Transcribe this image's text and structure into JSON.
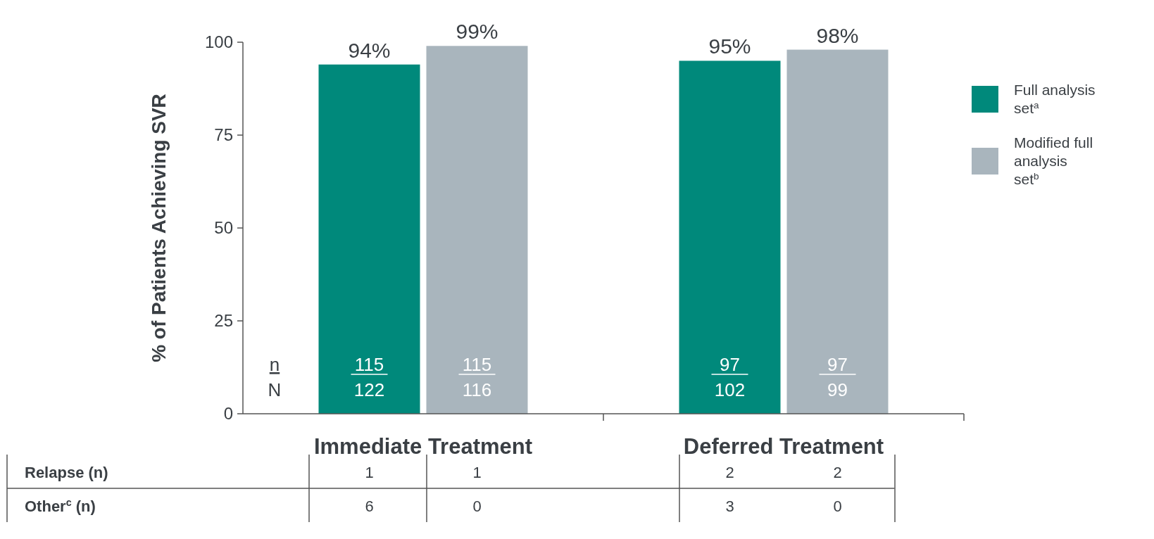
{
  "chart_data": {
    "type": "bar",
    "ylabel": "% of Patients Achieving SVR",
    "categories": [
      "Immediate Treatment",
      "Deferred Treatment"
    ],
    "series": [
      {
        "name": "Full analysis set$^{a}$",
        "color": "#00897b",
        "values": [
          94,
          95
        ],
        "value_labels": [
          "94%",
          "95%"
        ]
      },
      {
        "name": "Modified full analysis set$^{b}$",
        "color": "#a9b5bd",
        "values": [
          99,
          98
        ],
        "value_labels": [
          "99%",
          "98%"
        ]
      }
    ],
    "ylim": [
      0,
      100
    ],
    "yticks": [
      0,
      25,
      50,
      75,
      100
    ],
    "grid": false,
    "legend": "right",
    "annotations": [
      "n",
      "N",
      "115",
      "122",
      "115",
      "116",
      "97",
      "102",
      "97",
      "99",
      "Relapse (n)",
      "1",
      "1",
      "2",
      "2",
      "Other$^{c}$ (n)",
      "6",
      "0",
      "3",
      "0"
    ]
  }
}
